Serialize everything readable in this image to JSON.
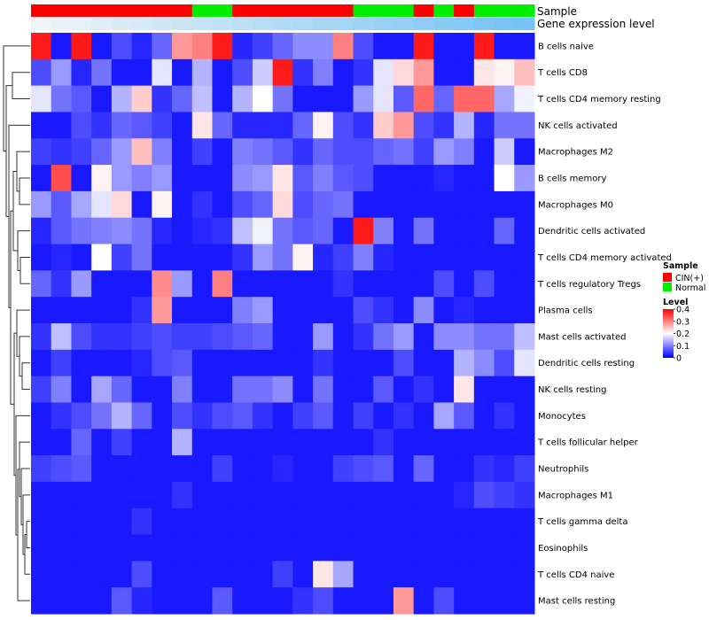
{
  "chart_data": {
    "type": "heatmap",
    "title": "",
    "annotations": {
      "sample_label": "Sample",
      "expression_label": "Gene expression level",
      "sample_groups": [
        "CIN(+)",
        "CIN(+)",
        "CIN(+)",
        "CIN(+)",
        "CIN(+)",
        "CIN(+)",
        "CIN(+)",
        "CIN(+)",
        "Normal",
        "Normal",
        "CIN(+)",
        "CIN(+)",
        "CIN(+)",
        "CIN(+)",
        "CIN(+)",
        "CIN(+)",
        "Normal",
        "Normal",
        "Normal",
        "CIN(+)",
        "Normal",
        "CIN(+)",
        "Normal",
        "Normal",
        "Normal"
      ],
      "expression_levels": [
        0.05,
        0.08,
        0.11,
        0.14,
        0.17,
        0.2,
        0.23,
        0.26,
        0.29,
        0.32,
        0.35,
        0.38,
        0.41,
        0.44,
        0.47,
        0.5,
        0.53,
        0.56,
        0.59,
        0.62,
        0.65,
        0.68,
        0.71,
        0.74,
        0.77
      ]
    },
    "rows": [
      {
        "name": "B cells naive",
        "values": [
          0.38,
          0.02,
          0.38,
          0.02,
          0.06,
          0.03,
          0.08,
          0.28,
          0.3,
          0.38,
          0.03,
          0.05,
          0.08,
          0.11,
          0.11,
          0.3,
          0.06,
          0.02,
          0.02,
          0.38,
          0.02,
          0.02,
          0.38,
          0.02,
          0.02
        ]
      },
      {
        "name": "T cells CD8",
        "values": [
          0.06,
          0.12,
          0.03,
          0.09,
          0.02,
          0.02,
          0.18,
          0.02,
          0.14,
          0.02,
          0.06,
          0.16,
          0.38,
          0.04,
          0.1,
          0.02,
          0.04,
          0.18,
          0.23,
          0.28,
          0.02,
          0.02,
          0.22,
          0.21,
          0.25
        ]
      },
      {
        "name": "T cells CD4 memory resting",
        "values": [
          0.18,
          0.09,
          0.07,
          0.02,
          0.14,
          0.24,
          0.04,
          0.08,
          0.15,
          0.02,
          0.14,
          0.2,
          0.09,
          0.02,
          0.02,
          0.02,
          0.12,
          0.18,
          0.07,
          0.32,
          0.08,
          0.32,
          0.32,
          0.13,
          0.19
        ]
      },
      {
        "name": "NK cells activated",
        "values": [
          0.02,
          0.02,
          0.06,
          0.04,
          0.08,
          0.07,
          0.05,
          0.02,
          0.22,
          0.08,
          0.03,
          0.03,
          0.03,
          0.08,
          0.21,
          0.06,
          0.04,
          0.24,
          0.28,
          0.06,
          0.04,
          0.14,
          0.03,
          0.09,
          0.09
        ]
      },
      {
        "name": "Macrophages M2",
        "values": [
          0.05,
          0.04,
          0.05,
          0.08,
          0.12,
          0.25,
          0.1,
          0.02,
          0.05,
          0.02,
          0.1,
          0.09,
          0.07,
          0.04,
          0.08,
          0.06,
          0.06,
          0.08,
          0.09,
          0.05,
          0.12,
          0.1,
          0.02,
          0.16,
          0.02
        ]
      },
      {
        "name": "B cells memory",
        "values": [
          0.02,
          0.34,
          0.02,
          0.21,
          0.12,
          0.1,
          0.12,
          0.02,
          0.02,
          0.02,
          0.11,
          0.12,
          0.22,
          0.07,
          0.1,
          0.07,
          0.06,
          0.02,
          0.02,
          0.02,
          0.03,
          0.02,
          0.02,
          0.2,
          0.12
        ]
      },
      {
        "name": "Macrophages M0",
        "values": [
          0.12,
          0.07,
          0.13,
          0.18,
          0.23,
          0.02,
          0.21,
          0.02,
          0.04,
          0.02,
          0.06,
          0.08,
          0.23,
          0.06,
          0.08,
          0.09,
          0.02,
          0.02,
          0.02,
          0.02,
          0.02,
          0.02,
          0.02,
          0.02,
          0.02
        ]
      },
      {
        "name": "Dendritic cells activated",
        "values": [
          0.03,
          0.07,
          0.09,
          0.1,
          0.11,
          0.09,
          0.03,
          0.02,
          0.03,
          0.04,
          0.15,
          0.19,
          0.09,
          0.07,
          0.08,
          0.02,
          0.38,
          0.1,
          0.02,
          0.09,
          0.02,
          0.02,
          0.02,
          0.08,
          0.02
        ]
      },
      {
        "name": "T cells CD4 memory activated",
        "values": [
          0.02,
          0.03,
          0.02,
          0.2,
          0.05,
          0.09,
          0.02,
          0.02,
          0.02,
          0.02,
          0.04,
          0.12,
          0.09,
          0.21,
          0.03,
          0.05,
          0.1,
          0.03,
          0.02,
          0.02,
          0.02,
          0.02,
          0.02,
          0.02,
          0.02
        ]
      },
      {
        "name": "T cells regulatory  Tregs",
        "values": [
          0.08,
          0.04,
          0.12,
          0.02,
          0.02,
          0.02,
          0.29,
          0.12,
          0.02,
          0.3,
          0.02,
          0.02,
          0.02,
          0.02,
          0.02,
          0.04,
          0.02,
          0.02,
          0.02,
          0.02,
          0.06,
          0.02,
          0.06,
          0.02,
          0.02
        ]
      },
      {
        "name": "Plasma cells",
        "values": [
          0.02,
          0.02,
          0.02,
          0.02,
          0.02,
          0.04,
          0.28,
          0.02,
          0.02,
          0.02,
          0.1,
          0.12,
          0.02,
          0.02,
          0.02,
          0.02,
          0.06,
          0.04,
          0.02,
          0.11,
          0.02,
          0.03,
          0.02,
          0.02,
          0.02
        ]
      },
      {
        "name": "Mast cells activated",
        "values": [
          0.04,
          0.15,
          0.06,
          0.04,
          0.04,
          0.05,
          0.06,
          0.05,
          0.05,
          0.06,
          0.07,
          0.08,
          0.02,
          0.02,
          0.12,
          0.02,
          0.04,
          0.09,
          0.12,
          0.02,
          0.11,
          0.11,
          0.09,
          0.09,
          0.15
        ]
      },
      {
        "name": "Dendritic cells resting",
        "values": [
          0.02,
          0.05,
          0.02,
          0.02,
          0.02,
          0.03,
          0.06,
          0.07,
          0.02,
          0.02,
          0.02,
          0.02,
          0.02,
          0.02,
          0.04,
          0.02,
          0.02,
          0.02,
          0.06,
          0.02,
          0.02,
          0.14,
          0.11,
          0.06,
          0.18
        ]
      },
      {
        "name": "NK cells resting",
        "values": [
          0.05,
          0.1,
          0.02,
          0.13,
          0.08,
          0.02,
          0.02,
          0.1,
          0.02,
          0.02,
          0.09,
          0.09,
          0.11,
          0.02,
          0.09,
          0.02,
          0.02,
          0.07,
          0.02,
          0.04,
          0.02,
          0.22,
          0.02,
          0.02,
          0.02
        ]
      },
      {
        "name": "Monocytes",
        "values": [
          0.02,
          0.04,
          0.06,
          0.09,
          0.14,
          0.08,
          0.02,
          0.06,
          0.04,
          0.06,
          0.07,
          0.04,
          0.02,
          0.05,
          0.07,
          0.02,
          0.05,
          0.02,
          0.04,
          0.02,
          0.13,
          0.07,
          0.02,
          0.04,
          0.02
        ]
      },
      {
        "name": "T cells follicular helper",
        "values": [
          0.02,
          0.02,
          0.08,
          0.02,
          0.05,
          0.02,
          0.02,
          0.14,
          0.02,
          0.02,
          0.02,
          0.02,
          0.02,
          0.02,
          0.02,
          0.02,
          0.02,
          0.04,
          0.02,
          0.02,
          0.02,
          0.02,
          0.02,
          0.02,
          0.02
        ]
      },
      {
        "name": "Neutrophils",
        "values": [
          0.05,
          0.06,
          0.07,
          0.02,
          0.02,
          0.02,
          0.02,
          0.02,
          0.02,
          0.05,
          0.02,
          0.02,
          0.03,
          0.02,
          0.02,
          0.05,
          0.06,
          0.07,
          0.02,
          0.08,
          0.02,
          0.02,
          0.04,
          0.03,
          0.05
        ]
      },
      {
        "name": "Macrophages M1",
        "values": [
          0.02,
          0.02,
          0.02,
          0.02,
          0.02,
          0.02,
          0.02,
          0.04,
          0.02,
          0.02,
          0.02,
          0.02,
          0.02,
          0.02,
          0.02,
          0.02,
          0.02,
          0.02,
          0.02,
          0.02,
          0.02,
          0.03,
          0.06,
          0.05,
          0.04
        ]
      },
      {
        "name": "T cells gamma delta",
        "values": [
          0.02,
          0.02,
          0.02,
          0.02,
          0.02,
          0.04,
          0.02,
          0.02,
          0.02,
          0.02,
          0.02,
          0.02,
          0.02,
          0.02,
          0.02,
          0.02,
          0.02,
          0.02,
          0.02,
          0.02,
          0.02,
          0.02,
          0.02,
          0.02,
          0.02
        ]
      },
      {
        "name": "Eosinophils",
        "values": [
          0.02,
          0.02,
          0.02,
          0.02,
          0.02,
          0.02,
          0.02,
          0.02,
          0.02,
          0.02,
          0.02,
          0.02,
          0.02,
          0.02,
          0.02,
          0.02,
          0.02,
          0.02,
          0.02,
          0.02,
          0.02,
          0.02,
          0.02,
          0.02,
          0.02
        ]
      },
      {
        "name": "T cells CD4 naive",
        "values": [
          0.02,
          0.02,
          0.02,
          0.02,
          0.02,
          0.06,
          0.02,
          0.02,
          0.02,
          0.02,
          0.02,
          0.02,
          0.05,
          0.02,
          0.22,
          0.13,
          0.02,
          0.02,
          0.02,
          0.02,
          0.02,
          0.02,
          0.02,
          0.02,
          0.02
        ]
      },
      {
        "name": "Mast cells resting",
        "values": [
          0.02,
          0.02,
          0.02,
          0.02,
          0.07,
          0.03,
          0.02,
          0.02,
          0.02,
          0.07,
          0.02,
          0.02,
          0.02,
          0.04,
          0.06,
          0.02,
          0.02,
          0.02,
          0.28,
          0.02,
          0.06,
          0.02,
          0.02,
          0.02,
          0.02
        ]
      }
    ],
    "color_scale": {
      "min": 0,
      "max": 0.4,
      "stops": [
        {
          "value": 0,
          "color": "#0000ff"
        },
        {
          "value": 0.2,
          "color": "#ffffff"
        },
        {
          "value": 0.4,
          "color": "#ff0000"
        }
      ]
    },
    "legend": {
      "sample_title": "Sample",
      "sample_items": [
        {
          "label": "CIN(+)",
          "color": "#ff0000"
        },
        {
          "label": "Normal",
          "color": "#00ee00"
        }
      ],
      "level_title": "Level",
      "level_ticks": [
        "0.4",
        "0.3",
        "0.2",
        "0.1",
        "0"
      ],
      "level_tick_values": [
        0.4,
        0.3,
        0.2,
        0.1,
        0
      ]
    }
  },
  "colors": {
    "cin": "#ff0000",
    "normal": "#00ee00",
    "expr_low": "#f7f7f7",
    "expr_high": "#4fb3f5"
  }
}
